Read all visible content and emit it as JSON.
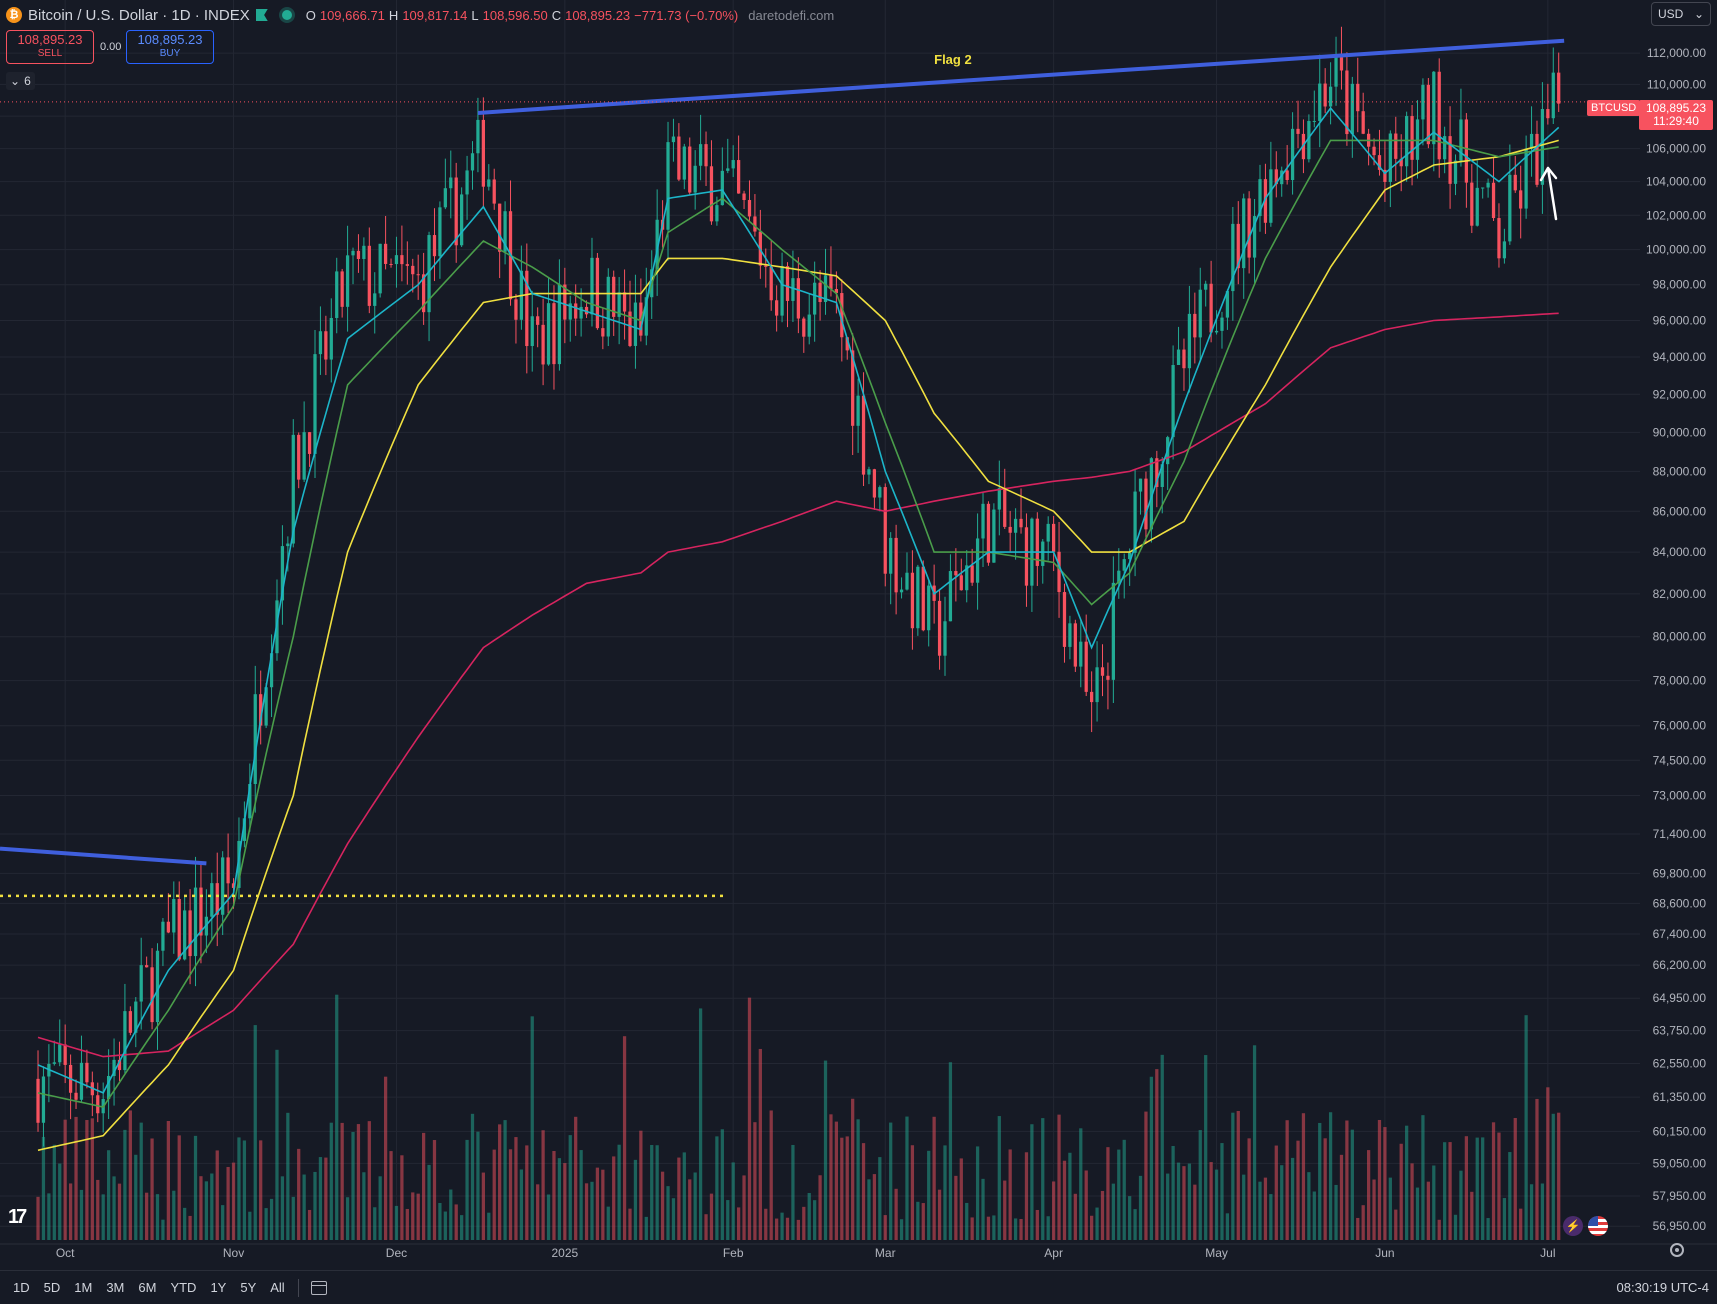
{
  "header": {
    "symbol_logo": "₿",
    "title": "Bitcoin / U.S. Dollar · 1D · INDEX",
    "ohlc": {
      "o_label": "O",
      "o": "109,666.71",
      "h_label": "H",
      "h": "109,817.14",
      "l_label": "L",
      "l": "108,596.50",
      "c_label": "C",
      "c": "108,895.23",
      "change": "−771.73 (−0.70%)"
    },
    "site": "daretodefi.com"
  },
  "trade": {
    "sell_price": "108,895.23",
    "sell_label": "SELL",
    "spread": "0.00",
    "buy_price": "108,895.23",
    "buy_label": "BUY"
  },
  "indicators_toggle": {
    "count": "6"
  },
  "currency": "USD",
  "price_badge": {
    "symbol": "BTCUSD",
    "price": "108,895.23",
    "countdown": "11:29:40"
  },
  "annotation": {
    "flag_label": "Flag 2"
  },
  "bottom": {
    "ranges": [
      "1D",
      "5D",
      "1M",
      "3M",
      "6M",
      "YTD",
      "1Y",
      "5Y",
      "All"
    ],
    "time": "08:30:19 UTC-4"
  },
  "colors": {
    "up": "#22ab94",
    "down": "#f7525f",
    "ema_fast": "#1cb5c9",
    "ema_mid": "#4a9d4a",
    "ema_slow": "#f0e040",
    "ema_long": "#d6245f",
    "trendline": "#3f5fdd"
  },
  "chart_data": {
    "type": "candlestick",
    "y_scale": "log",
    "y_ticks": [
      "112,000.00",
      "110,000.00",
      "108,000.00",
      "106,000.00",
      "104,000.00",
      "102,000.00",
      "100,000.00",
      "98,000.00",
      "96,000.00",
      "94,000.00",
      "92,000.00",
      "90,000.00",
      "88,000.00",
      "86,000.00",
      "84,000.00",
      "82,000.00",
      "80,000.00",
      "78,000.00",
      "76,000.00",
      "74,500.00",
      "73,000.00",
      "71,400.00",
      "69,800.00",
      "68,600.00",
      "67,400.00",
      "66,200.00",
      "64,950.00",
      "63,750.00",
      "62,550.00",
      "61,350.00",
      "60,150.00",
      "59,050.00",
      "57,950.00",
      "56,950.00"
    ],
    "x_ticks": [
      "Oct",
      "Nov",
      "Dec",
      "2025",
      "Feb",
      "Mar",
      "Apr",
      "May",
      "Jun",
      "Jul"
    ],
    "ylim": [
      56500,
      113500
    ],
    "x": [
      "2024-09-26",
      "2024-10-08",
      "2024-10-20",
      "2024-11-01",
      "2024-11-12",
      "2024-11-22",
      "2024-12-05",
      "2024-12-17",
      "2024-12-26",
      "2025-01-05",
      "2025-01-15",
      "2025-01-20",
      "2025-01-30",
      "2025-02-10",
      "2025-02-20",
      "2025-03-01",
      "2025-03-10",
      "2025-03-20",
      "2025-04-01",
      "2025-04-08",
      "2025-04-15",
      "2025-04-25",
      "2025-05-10",
      "2025-05-22",
      "2025-06-01",
      "2025-06-10",
      "2025-06-22",
      "2025-07-03"
    ],
    "close": [
      62000,
      61800,
      67000,
      69400,
      88000,
      98500,
      98000,
      106000,
      94500,
      98000,
      95000,
      104500,
      104000,
      97500,
      96500,
      84500,
      80000,
      85500,
      83500,
      76000,
      84500,
      93500,
      104000,
      110500,
      104000,
      108500,
      100500,
      108895
    ],
    "ema_fast": [
      62500,
      61500,
      66000,
      69000,
      85000,
      95000,
      98000,
      102500,
      97500,
      96500,
      95500,
      103000,
      103500,
      98000,
      97000,
      88000,
      82000,
      84000,
      84000,
      79500,
      83500,
      91500,
      103000,
      108500,
      104500,
      107000,
      104000,
      107300
    ],
    "ema_mid": [
      61500,
      61000,
      64500,
      68500,
      80000,
      92500,
      96500,
      100500,
      99000,
      97000,
      96000,
      101000,
      103000,
      100000,
      97500,
      90500,
      84000,
      84000,
      83500,
      81500,
      83000,
      88500,
      99500,
      106500,
      106500,
      106500,
      105500,
      106100
    ],
    "ema_slow": [
      59500,
      60000,
      62500,
      66000,
      73000,
      84000,
      92500,
      97000,
      97500,
      97500,
      97500,
      99500,
      99500,
      99000,
      98500,
      96000,
      91000,
      87500,
      86000,
      84000,
      84000,
      85500,
      92500,
      99000,
      103500,
      105000,
      105500,
      106500
    ],
    "ema_long": [
      63500,
      62800,
      63000,
      64500,
      67000,
      71000,
      75500,
      79500,
      81000,
      82500,
      83000,
      84000,
      84500,
      85500,
      86500,
      86000,
      86500,
      87000,
      87500,
      87700,
      88000,
      89000,
      91500,
      94500,
      95500,
      96000,
      96200,
      96400
    ],
    "volume_hint": "volume histogram along bottom"
  }
}
